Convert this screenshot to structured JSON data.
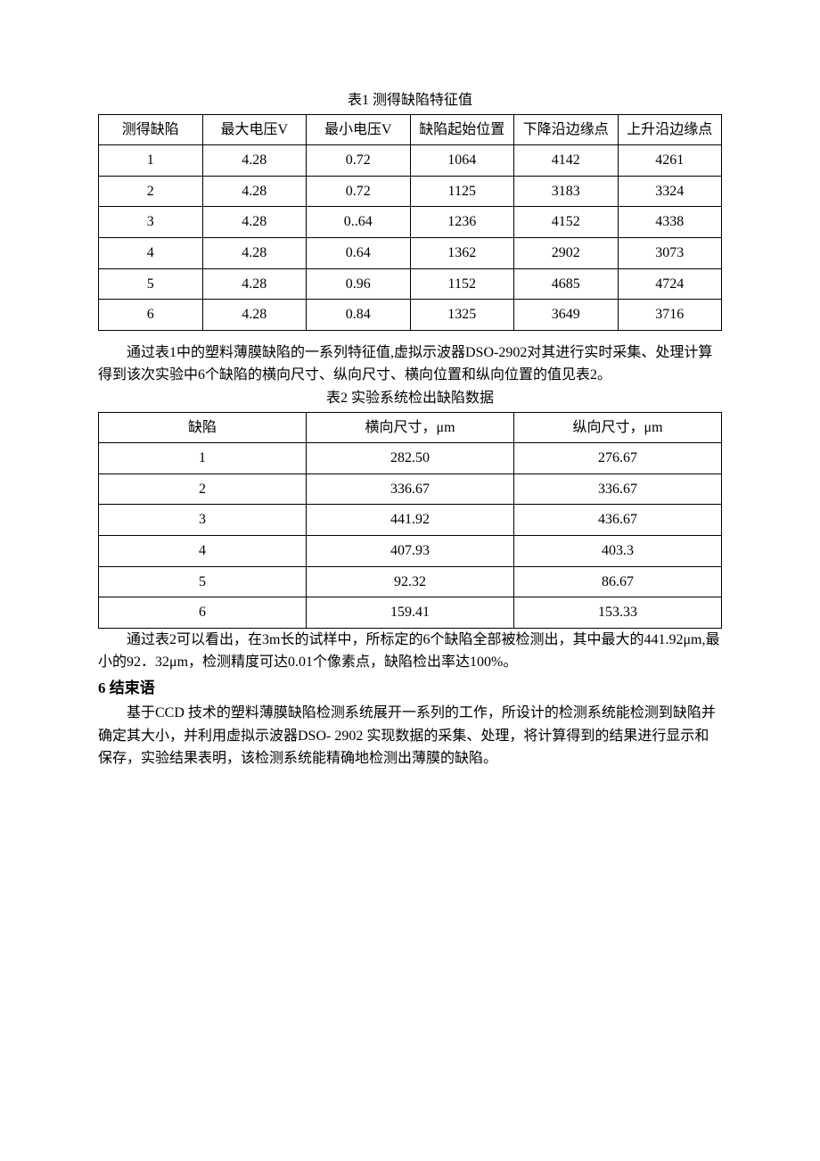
{
  "table1": {
    "caption": "表1 测得缺陷特征值",
    "columns": [
      "测得缺陷",
      "最大电压V",
      "最小电压V",
      "缺陷起始位置",
      "下降沿边缘点",
      "上升沿边缘点"
    ],
    "rows": [
      [
        "1",
        "4.28",
        "0.72",
        "1064",
        "4142",
        "4261"
      ],
      [
        "2",
        "4.28",
        "0.72",
        "1125",
        "3183",
        "3324"
      ],
      [
        "3",
        "4.28",
        "0..64",
        "1236",
        "4152",
        "4338"
      ],
      [
        "4",
        "4.28",
        "0.64",
        "1362",
        "2902",
        "3073"
      ],
      [
        "5",
        "4.28",
        "0.96",
        "1152",
        "4685",
        "4724"
      ],
      [
        "6",
        "4.28",
        "0.84",
        "1325",
        "3649",
        "3716"
      ]
    ]
  },
  "paragraph1": "通过表1中的塑料薄膜缺陷的一系列特征值,虚拟示波器DSO-2902对其进行实时采集、处理计算得到该次实验中6个缺陷的横向尺寸、纵向尺寸、横向位置和纵向位置的值见表2。",
  "table2": {
    "caption": "表2 实验系统检出缺陷数据",
    "columns": [
      "缺陷",
      "横向尺寸，μm",
      "纵向尺寸，μm"
    ],
    "rows": [
      [
        "1",
        "282.50",
        "276.67"
      ],
      [
        "2",
        "336.67",
        "336.67"
      ],
      [
        "3",
        "441.92",
        "436.67"
      ],
      [
        "4",
        "407.93",
        "403.3"
      ],
      [
        "5",
        "92.32",
        "86.67"
      ],
      [
        "6",
        "159.41",
        "153.33"
      ]
    ]
  },
  "paragraph2": "通过表2可以看出，在3m长的试样中，所标定的6个缺陷全部被检测出，其中最大的441.92μm,最小的92．32μm，检测精度可达0.01个像素点，缺陷检出率达100%。",
  "section6": {
    "heading": "6 结束语",
    "body": "基于CCD 技术的塑料薄膜缺陷检测系统展开一系列的工作，所设计的检测系统能检测到缺陷并确定其大小，并利用虚拟示波器DSO- 2902 实现数据的采集、处理，将计算得到的结果进行显示和保存，实验结果表明，该检测系统能精确地检测出薄膜的缺陷。"
  }
}
